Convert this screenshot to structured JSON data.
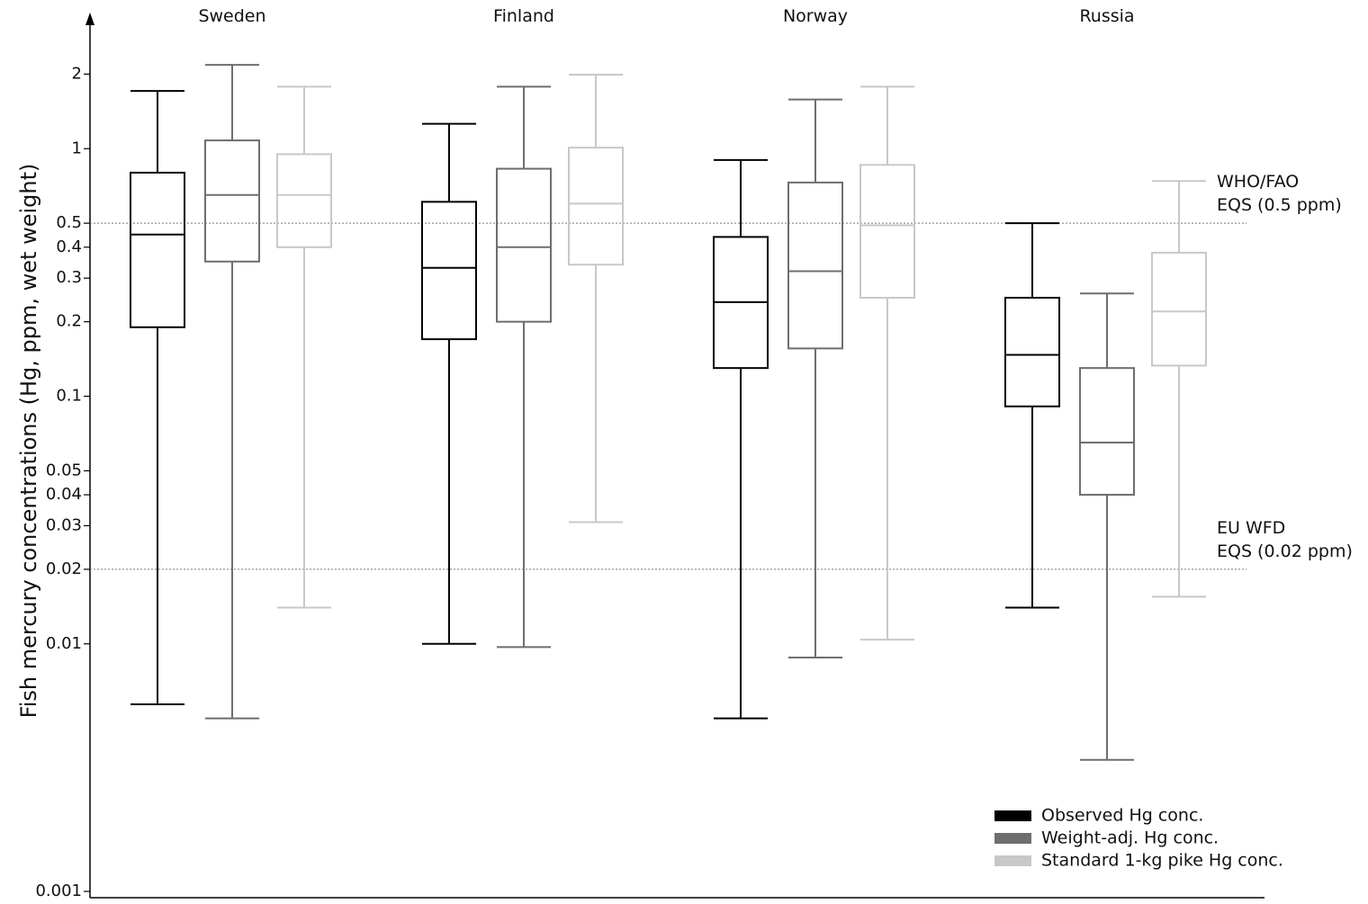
{
  "chart_data": {
    "type": "box",
    "log_scale": true,
    "y_label": "Fish mercury concentrations (Hg, ppm, wet weight)",
    "categories": [
      "Sweden",
      "Finland",
      "Norway",
      "Russia"
    ],
    "ylim": [
      0.001,
      3.4
    ],
    "yticks": [
      0.001,
      0.01,
      0.02,
      0.03,
      0.04,
      0.05,
      0.1,
      0.2,
      0.3,
      0.4,
      0.5,
      1,
      2
    ],
    "series": [
      {
        "name": "Observed Hg conc.",
        "color": "#000000",
        "whisker_low": [
          0.0057,
          0.01,
          0.005,
          0.014
        ],
        "q1": [
          0.19,
          0.17,
          0.13,
          0.091
        ],
        "median": [
          0.45,
          0.33,
          0.24,
          0.147
        ],
        "q3": [
          0.8,
          0.61,
          0.44,
          0.25
        ],
        "whisker_high": [
          1.71,
          1.26,
          0.9,
          0.5
        ]
      },
      {
        "name": "Weight-adj. Hg conc.",
        "color": "#6e6e6e",
        "whisker_low": [
          0.005,
          0.0097,
          0.0088,
          0.0034
        ],
        "q1": [
          0.35,
          0.2,
          0.156,
          0.04
        ],
        "median": [
          0.65,
          0.4,
          0.32,
          0.065
        ],
        "q3": [
          1.08,
          0.83,
          0.73,
          0.13
        ],
        "whisker_high": [
          2.18,
          1.78,
          1.58,
          0.26
        ]
      },
      {
        "name": "Standard 1-kg pike Hg conc.",
        "color": "#c8c8c8",
        "whisker_low": [
          0.014,
          0.031,
          0.0104,
          0.0155
        ],
        "q1": [
          0.4,
          0.34,
          0.25,
          0.133
        ],
        "median": [
          0.65,
          0.6,
          0.49,
          0.22
        ],
        "q3": [
          0.95,
          1.01,
          0.86,
          0.38
        ],
        "whisker_high": [
          1.78,
          1.99,
          1.78,
          0.74
        ]
      }
    ],
    "reference_lines": [
      {
        "value": 0.5,
        "label": [
          "WHO/FAO",
          "EQS (0.5 ppm)"
        ]
      },
      {
        "value": 0.02,
        "label": [
          "EU WFD",
          "EQS (0.02 ppm)"
        ]
      }
    ]
  }
}
